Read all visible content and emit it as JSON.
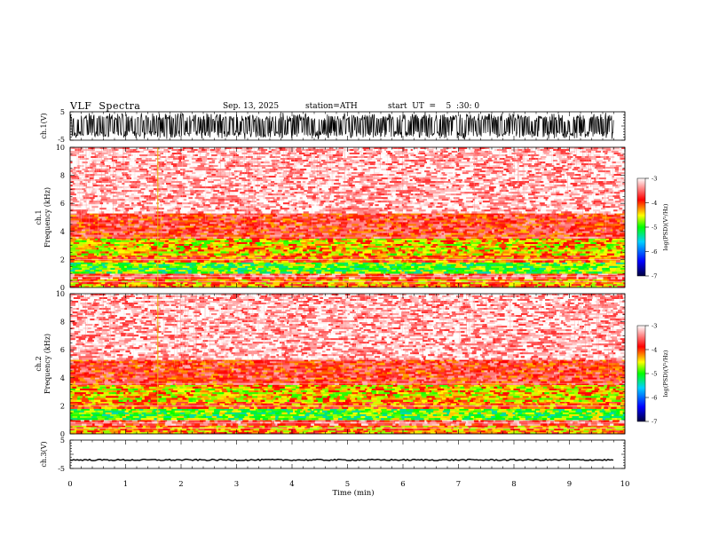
{
  "header": {
    "title": "VLF  Spectra",
    "date": "Sep. 13, 2025",
    "station": "station=ATH",
    "start": "start  UT  =    5  :30: 0"
  },
  "chart_data": [
    {
      "type": "line",
      "panel": "ch1-waveform",
      "ylabel": "ch.1(V)",
      "ylim": [
        -5,
        5
      ],
      "yticks": [
        "5",
        "-5"
      ],
      "signal": "dense noise spanning nearly full range",
      "xlim": [
        0,
        9.8
      ]
    },
    {
      "type": "heatmap",
      "panel": "ch1-spectrogram",
      "ylabel": "ch.1\nFrequency  (kHz)",
      "ylabel_lines": [
        "ch.1",
        "Frequency  (kHz)"
      ],
      "ylim": [
        0,
        10
      ],
      "yticks": [
        "0",
        "2",
        "4",
        "6",
        "8",
        "10"
      ],
      "colorbar": {
        "label": "log(PSD)(V²/Hz)",
        "ticks": [
          "-3",
          "-4",
          "-5",
          "-6",
          "-7"
        ],
        "range": [
          -7,
          -3
        ]
      },
      "bands": [
        {
          "from_khz": 0,
          "to_khz": 0.6,
          "level": -4.2
        },
        {
          "from_khz": 0.6,
          "to_khz": 1.0,
          "level": -3.6
        },
        {
          "from_khz": 1.0,
          "to_khz": 1.8,
          "level": -4.9
        },
        {
          "from_khz": 1.8,
          "to_khz": 2.3,
          "level": -4.1
        },
        {
          "from_khz": 2.3,
          "to_khz": 3.5,
          "level": -4.4
        },
        {
          "from_khz": 3.5,
          "to_khz": 5.3,
          "level": -3.8
        },
        {
          "from_khz": 5.3,
          "to_khz": 10,
          "level": -3.2
        }
      ]
    },
    {
      "type": "heatmap",
      "panel": "ch2-spectrogram",
      "ylabel": "ch.2\nFrequency  (kHz)",
      "ylabel_lines": [
        "ch.2",
        "Frequency  (kHz)"
      ],
      "ylim": [
        0,
        10
      ],
      "yticks": [
        "0",
        "2",
        "4",
        "6",
        "8",
        "10"
      ],
      "colorbar": {
        "label": "log(PSD)(V²/Hz)",
        "ticks": [
          "-3",
          "-4",
          "-5",
          "-6",
          "-7"
        ],
        "range": [
          -7,
          -3
        ]
      },
      "bands": [
        {
          "from_khz": 0,
          "to_khz": 0.6,
          "level": -4.2
        },
        {
          "from_khz": 0.6,
          "to_khz": 1.0,
          "level": -3.6
        },
        {
          "from_khz": 1.0,
          "to_khz": 1.8,
          "level": -4.9
        },
        {
          "from_khz": 1.8,
          "to_khz": 2.3,
          "level": -4.1
        },
        {
          "from_khz": 2.3,
          "to_khz": 3.5,
          "level": -4.4
        },
        {
          "from_khz": 3.5,
          "to_khz": 5.3,
          "level": -3.8
        },
        {
          "from_khz": 5.3,
          "to_khz": 10,
          "level": -3.2
        }
      ]
    },
    {
      "type": "line",
      "panel": "ch3-waveform",
      "ylabel": "ch.3(V)",
      "ylim": [
        -5,
        5
      ],
      "yticks": [
        "5",
        "-5"
      ],
      "signal": "flat line near -2 V",
      "level": -2,
      "xlim": [
        0,
        9.8
      ]
    }
  ],
  "xaxis": {
    "label": "Time  (min)",
    "range": [
      0,
      10
    ],
    "ticks": [
      "0",
      "1",
      "2",
      "3",
      "4",
      "5",
      "6",
      "7",
      "8",
      "9",
      "10"
    ]
  },
  "colors": {
    "colormap": [
      "#000060",
      "#0000ff",
      "#00c8ff",
      "#00ff00",
      "#ffff00",
      "#ff0000",
      "#ffffff"
    ]
  }
}
